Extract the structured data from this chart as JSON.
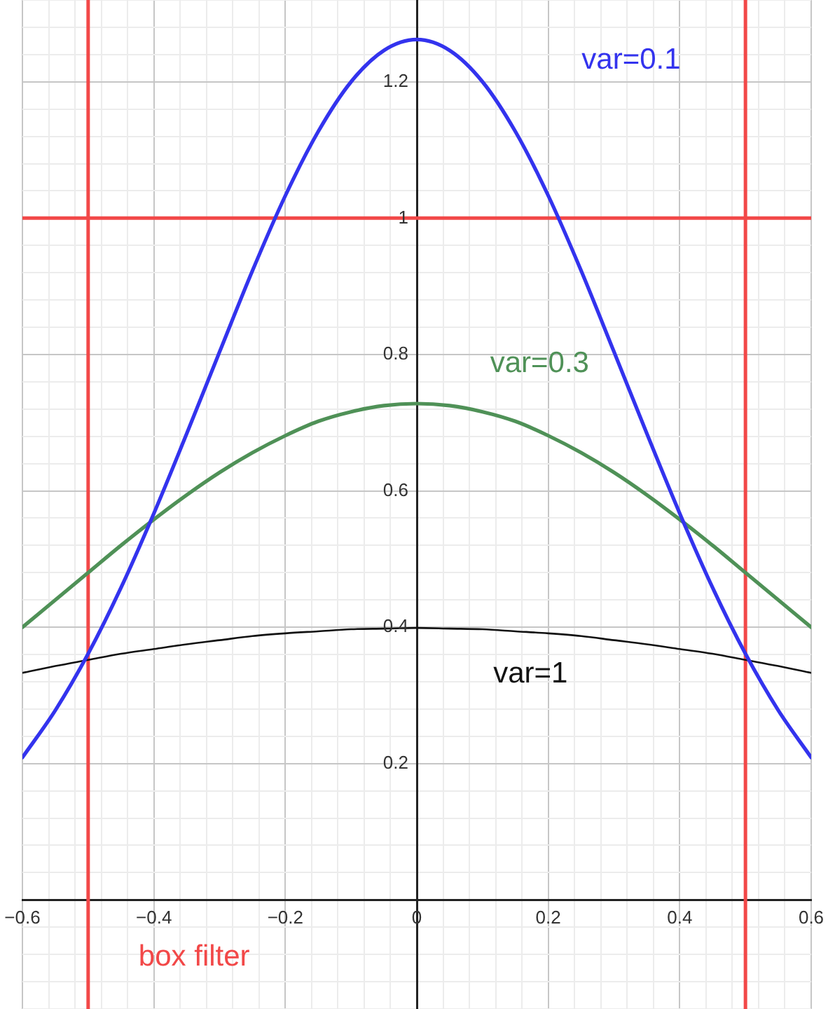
{
  "chart_data": {
    "type": "line",
    "x": [
      -0.6,
      -0.55,
      -0.5,
      -0.45,
      -0.4,
      -0.35,
      -0.3,
      -0.25,
      -0.2,
      -0.15,
      -0.1,
      -0.05,
      0,
      0.05,
      0.1,
      0.15,
      0.2,
      0.25,
      0.3,
      0.35,
      0.4,
      0.45,
      0.5,
      0.55,
      0.6
    ],
    "series": [
      {
        "name": "var=0.1",
        "color": "#3333ee",
        "values": [
          0.209,
          0.278,
          0.361,
          0.458,
          0.567,
          0.684,
          0.804,
          0.923,
          1.033,
          1.127,
          1.2,
          1.246,
          1.262,
          1.246,
          1.2,
          1.127,
          1.033,
          0.923,
          0.804,
          0.684,
          0.567,
          0.458,
          0.361,
          0.278,
          0.209
        ]
      },
      {
        "name": "var=0.3",
        "color": "#4f9157",
        "values": [
          0.4,
          0.44,
          0.48,
          0.52,
          0.558,
          0.594,
          0.627,
          0.656,
          0.681,
          0.702,
          0.716,
          0.725,
          0.728,
          0.725,
          0.716,
          0.702,
          0.681,
          0.656,
          0.627,
          0.594,
          0.558,
          0.52,
          0.48,
          0.44,
          0.4
        ]
      },
      {
        "name": "var=1",
        "color": "#111111",
        "values": [
          0.333,
          0.343,
          0.352,
          0.361,
          0.368,
          0.375,
          0.381,
          0.387,
          0.391,
          0.394,
          0.397,
          0.398,
          0.399,
          0.398,
          0.397,
          0.394,
          0.391,
          0.387,
          0.381,
          0.375,
          0.368,
          0.361,
          0.352,
          0.343,
          0.333
        ]
      }
    ],
    "ref_lines": [
      {
        "axis": "x",
        "value": -0.5,
        "label": "box filter",
        "color": "#f24848"
      },
      {
        "axis": "x",
        "value": 0.5,
        "color": "#f24848"
      },
      {
        "axis": "y",
        "value": 1,
        "color": "#f24848"
      }
    ],
    "xlim": [
      -0.6,
      0.6
    ],
    "xticks": [
      {
        "value": -0.6,
        "label": "−0.6"
      },
      {
        "value": -0.56,
        "label": null
      },
      {
        "value": -0.52,
        "label": null
      },
      {
        "value": -0.48,
        "label": null
      },
      {
        "value": -0.44,
        "label": null
      },
      {
        "value": -0.4,
        "label": "−0.4"
      },
      {
        "value": -0.36,
        "label": null
      },
      {
        "value": -0.32,
        "label": null
      },
      {
        "value": -0.28,
        "label": null
      },
      {
        "value": -0.24,
        "label": null
      },
      {
        "value": -0.2,
        "label": "−0.2"
      },
      {
        "value": -0.16,
        "label": null
      },
      {
        "value": -0.12,
        "label": null
      },
      {
        "value": -0.08,
        "label": null
      },
      {
        "value": -0.04,
        "label": null
      },
      0,
      {
        "value": 0.04,
        "label": null
      },
      {
        "value": 0.08,
        "label": null
      },
      {
        "value": 0.12,
        "label": null
      },
      {
        "value": 0.16,
        "label": null
      },
      0.2,
      {
        "value": 0.24,
        "label": null
      },
      {
        "value": 0.28,
        "label": null
      },
      {
        "value": 0.32,
        "label": null
      },
      {
        "value": 0.36,
        "label": null
      },
      0.4,
      {
        "value": 0.44,
        "label": null
      },
      {
        "value": 0.48,
        "label": null
      },
      {
        "value": 0.52,
        "label": null
      },
      {
        "value": 0.56,
        "label": null
      },
      0.6
    ],
    "ylim": [
      -0.16,
      1.32
    ],
    "yticks": [
      {
        "value": -0.16,
        "label": null
      },
      {
        "value": -0.12,
        "label": null
      },
      {
        "value": -0.08,
        "label": null
      },
      {
        "value": -0.04,
        "label": null
      },
      {
        "value": 0,
        "label": null
      },
      {
        "value": 0.04,
        "label": null
      },
      {
        "value": 0.08,
        "label": null
      },
      {
        "value": 0.12,
        "label": null
      },
      {
        "value": 0.16,
        "label": null
      },
      0.2,
      {
        "value": 0.24,
        "label": null
      },
      {
        "value": 0.28,
        "label": null
      },
      {
        "value": 0.32,
        "label": null
      },
      {
        "value": 0.36,
        "label": null
      },
      0.4,
      {
        "value": 0.44,
        "label": null
      },
      {
        "value": 0.48,
        "label": null
      },
      {
        "value": 0.52,
        "label": null
      },
      {
        "value": 0.56,
        "label": null
      },
      0.6,
      {
        "value": 0.64,
        "label": null
      },
      {
        "value": 0.68,
        "label": null
      },
      {
        "value": 0.72,
        "label": null
      },
      {
        "value": 0.76,
        "label": null
      },
      0.8,
      {
        "value": 0.84,
        "label": null
      },
      {
        "value": 0.88,
        "label": null
      },
      {
        "value": 0.92,
        "label": null
      },
      {
        "value": 0.96,
        "label": null
      },
      1,
      {
        "value": 1.04,
        "label": null
      },
      {
        "value": 1.08,
        "label": null
      },
      {
        "value": 1.12,
        "label": null
      },
      {
        "value": 1.16,
        "label": null
      },
      1.2,
      {
        "value": 1.24,
        "label": null
      },
      {
        "value": 1.28,
        "label": null
      },
      {
        "value": 1.32,
        "label": null
      }
    ],
    "grid": true,
    "marker": "none",
    "line_style": "solid"
  }
}
